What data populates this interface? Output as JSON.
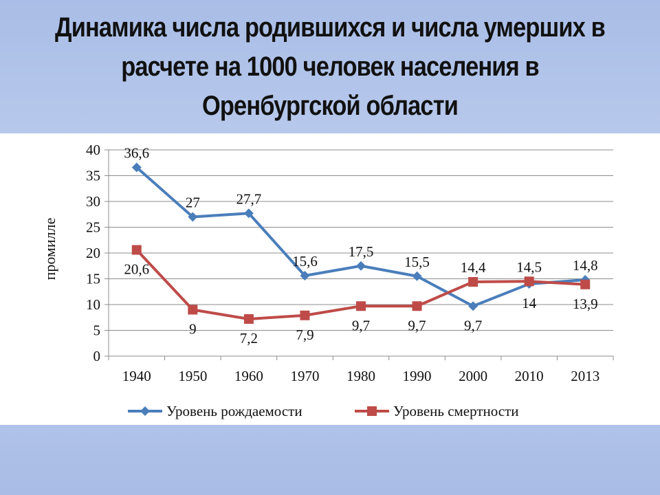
{
  "slide": {
    "title_lines": [
      "Динамика числа родившихся и числа умерших в",
      "расчете на 1000 человек населения в",
      "Оренбургской области"
    ]
  },
  "chart_data": {
    "type": "line",
    "title": "",
    "xlabel": "",
    "ylabel": "промилле",
    "ylim": [
      0,
      40
    ],
    "yticks": [
      "0",
      "5",
      "10",
      "15",
      "20",
      "25",
      "30",
      "35",
      "40"
    ],
    "categories": [
      "1940",
      "1950",
      "1960",
      "1970",
      "1980",
      "1990",
      "2000",
      "2010",
      "2013"
    ],
    "grid": true,
    "legend_position": "bottom",
    "series": [
      {
        "name": "Уровень рождаемости",
        "color": "#4a7ebb",
        "marker": "diamond",
        "values": [
          36.6,
          27,
          27.7,
          15.6,
          17.5,
          15.5,
          9.7,
          14,
          14.8
        ],
        "labels": [
          "36,6",
          "27",
          "27,7",
          "15,6",
          "17,5",
          "15,5",
          "9,7",
          "14",
          "14,8"
        ]
      },
      {
        "name": "Уровень смертности",
        "color": "#be4b48",
        "marker": "square",
        "values": [
          20.6,
          9,
          7.2,
          7.9,
          9.7,
          9.7,
          14.4,
          14.5,
          13.9
        ],
        "labels": [
          "20,6",
          "9",
          "7,2",
          "7,9",
          "9,7",
          "9,7",
          "14,4",
          "14,5",
          "13,9"
        ]
      }
    ]
  }
}
